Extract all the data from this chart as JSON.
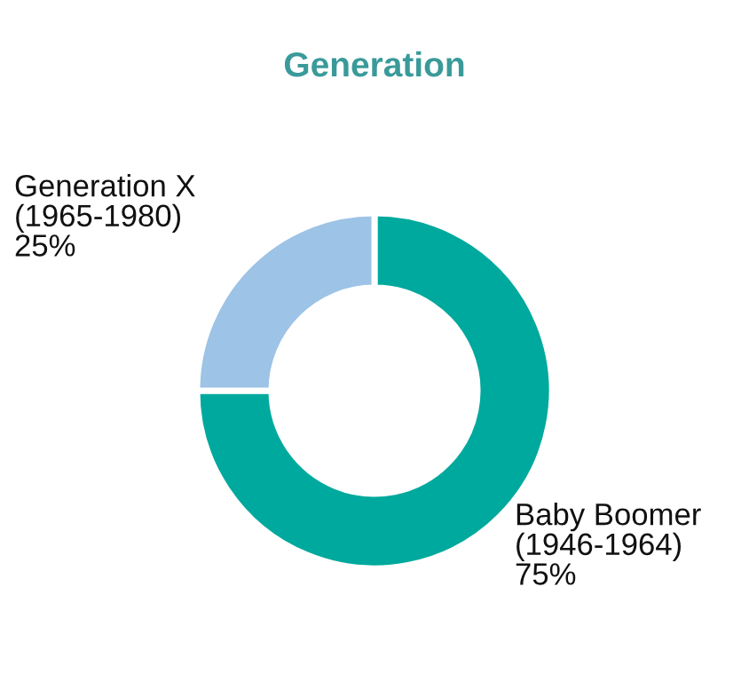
{
  "chart_data": {
    "type": "donut",
    "title": "Generation",
    "categories": [
      "Baby Boomer\n(1946-1964)",
      "Generation X\n(1965-1980)"
    ],
    "values": [
      75,
      25
    ],
    "value_labels": [
      "75%",
      "25%"
    ],
    "colors": [
      "#00a99d",
      "#9dc3e6"
    ]
  }
}
